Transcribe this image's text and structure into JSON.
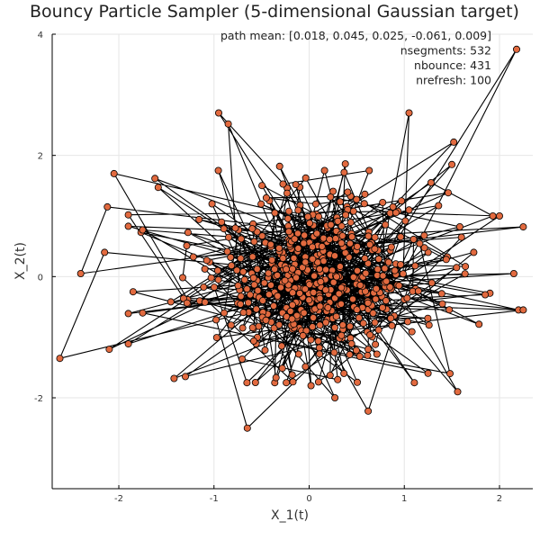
{
  "chart_data": {
    "type": "scatter",
    "title": "Bouncy Particle Sampler (5-dimensional Gaussian target)",
    "xlabel": "X_1(t)",
    "ylabel": "X_2(t)",
    "xlim": [
      -2.7,
      2.35
    ],
    "ylim": [
      -3.5,
      4.0
    ],
    "x_ticks": [
      -2,
      -1,
      0,
      1,
      2
    ],
    "y_ticks": [
      -2,
      0,
      2,
      4
    ],
    "x_tick_labels": [
      "-2",
      "-1",
      "0",
      "1",
      "2"
    ],
    "y_tick_labels": [
      "-2",
      "0",
      "2",
      "4"
    ],
    "grid": true,
    "legend": "none",
    "annotations": [
      "path mean: [0.018, 0.045, 0.025, -0.061, 0.009]",
      "nsegments: 532",
      "nbounce: 431",
      "nrefresh: 100"
    ],
    "line_color": "#000000",
    "marker_color": "#e26a3f",
    "marker_edge_color": "#000000",
    "series": [
      {
        "n_points_total": 532,
        "x": [
          0.15,
          2.18,
          1.05,
          1.52,
          0.88,
          -0.95,
          -0.85,
          -1.02,
          -0.31,
          0.47,
          1.12,
          1.25,
          0.62,
          -1.15,
          -0.92,
          -0.28,
          0.08,
          -0.45,
          -2.05,
          -2.15,
          -2.62,
          0.02,
          0.73,
          2.2,
          1.05,
          0.55,
          -0.62,
          -0.65,
          -1.3,
          -1.42,
          -0.72,
          1.73,
          -0.82,
          -0.36,
          -0.07,
          0.3,
          0.27,
          0.62,
          1.56,
          1.48,
          -2.12,
          -2.4,
          -1.85,
          -1.9,
          -1.75,
          -2.1,
          1.28,
          1.93,
          2.0,
          1.85,
          2.25,
          2.15,
          2.25,
          1.5,
          0.97,
          1.6,
          0.38,
          -0.18,
          -1.75,
          -1.62,
          0.9,
          1.26,
          1.4
        ],
        "y": [
          0.3,
          3.75,
          2.7,
          2.22,
          1.15,
          2.7,
          2.52,
          1.2,
          1.82,
          -0.5,
          -0.2,
          0.4,
          -1.2,
          -0.4,
          0.9,
          -0.6,
          0.35,
          1.3,
          1.7,
          0.4,
          -1.35,
          -1.8,
          -0.88,
          -0.55,
          1.1,
          0.0,
          -0.3,
          -2.5,
          -1.65,
          -1.68,
          0.3,
          0.4,
          -0.8,
          1.05,
          0.15,
          -1.7,
          -2.0,
          -2.22,
          -1.9,
          -1.6,
          1.15,
          0.05,
          -0.25,
          1.02,
          0.77,
          -1.2,
          1.55,
          1.0,
          1.0,
          -0.3,
          -0.55,
          0.05,
          0.82,
          1.85,
          1.25,
          0.65,
          1.86,
          -0.7,
          -0.6,
          1.62,
          0.1,
          -0.8,
          -0.45
        ]
      }
    ]
  }
}
